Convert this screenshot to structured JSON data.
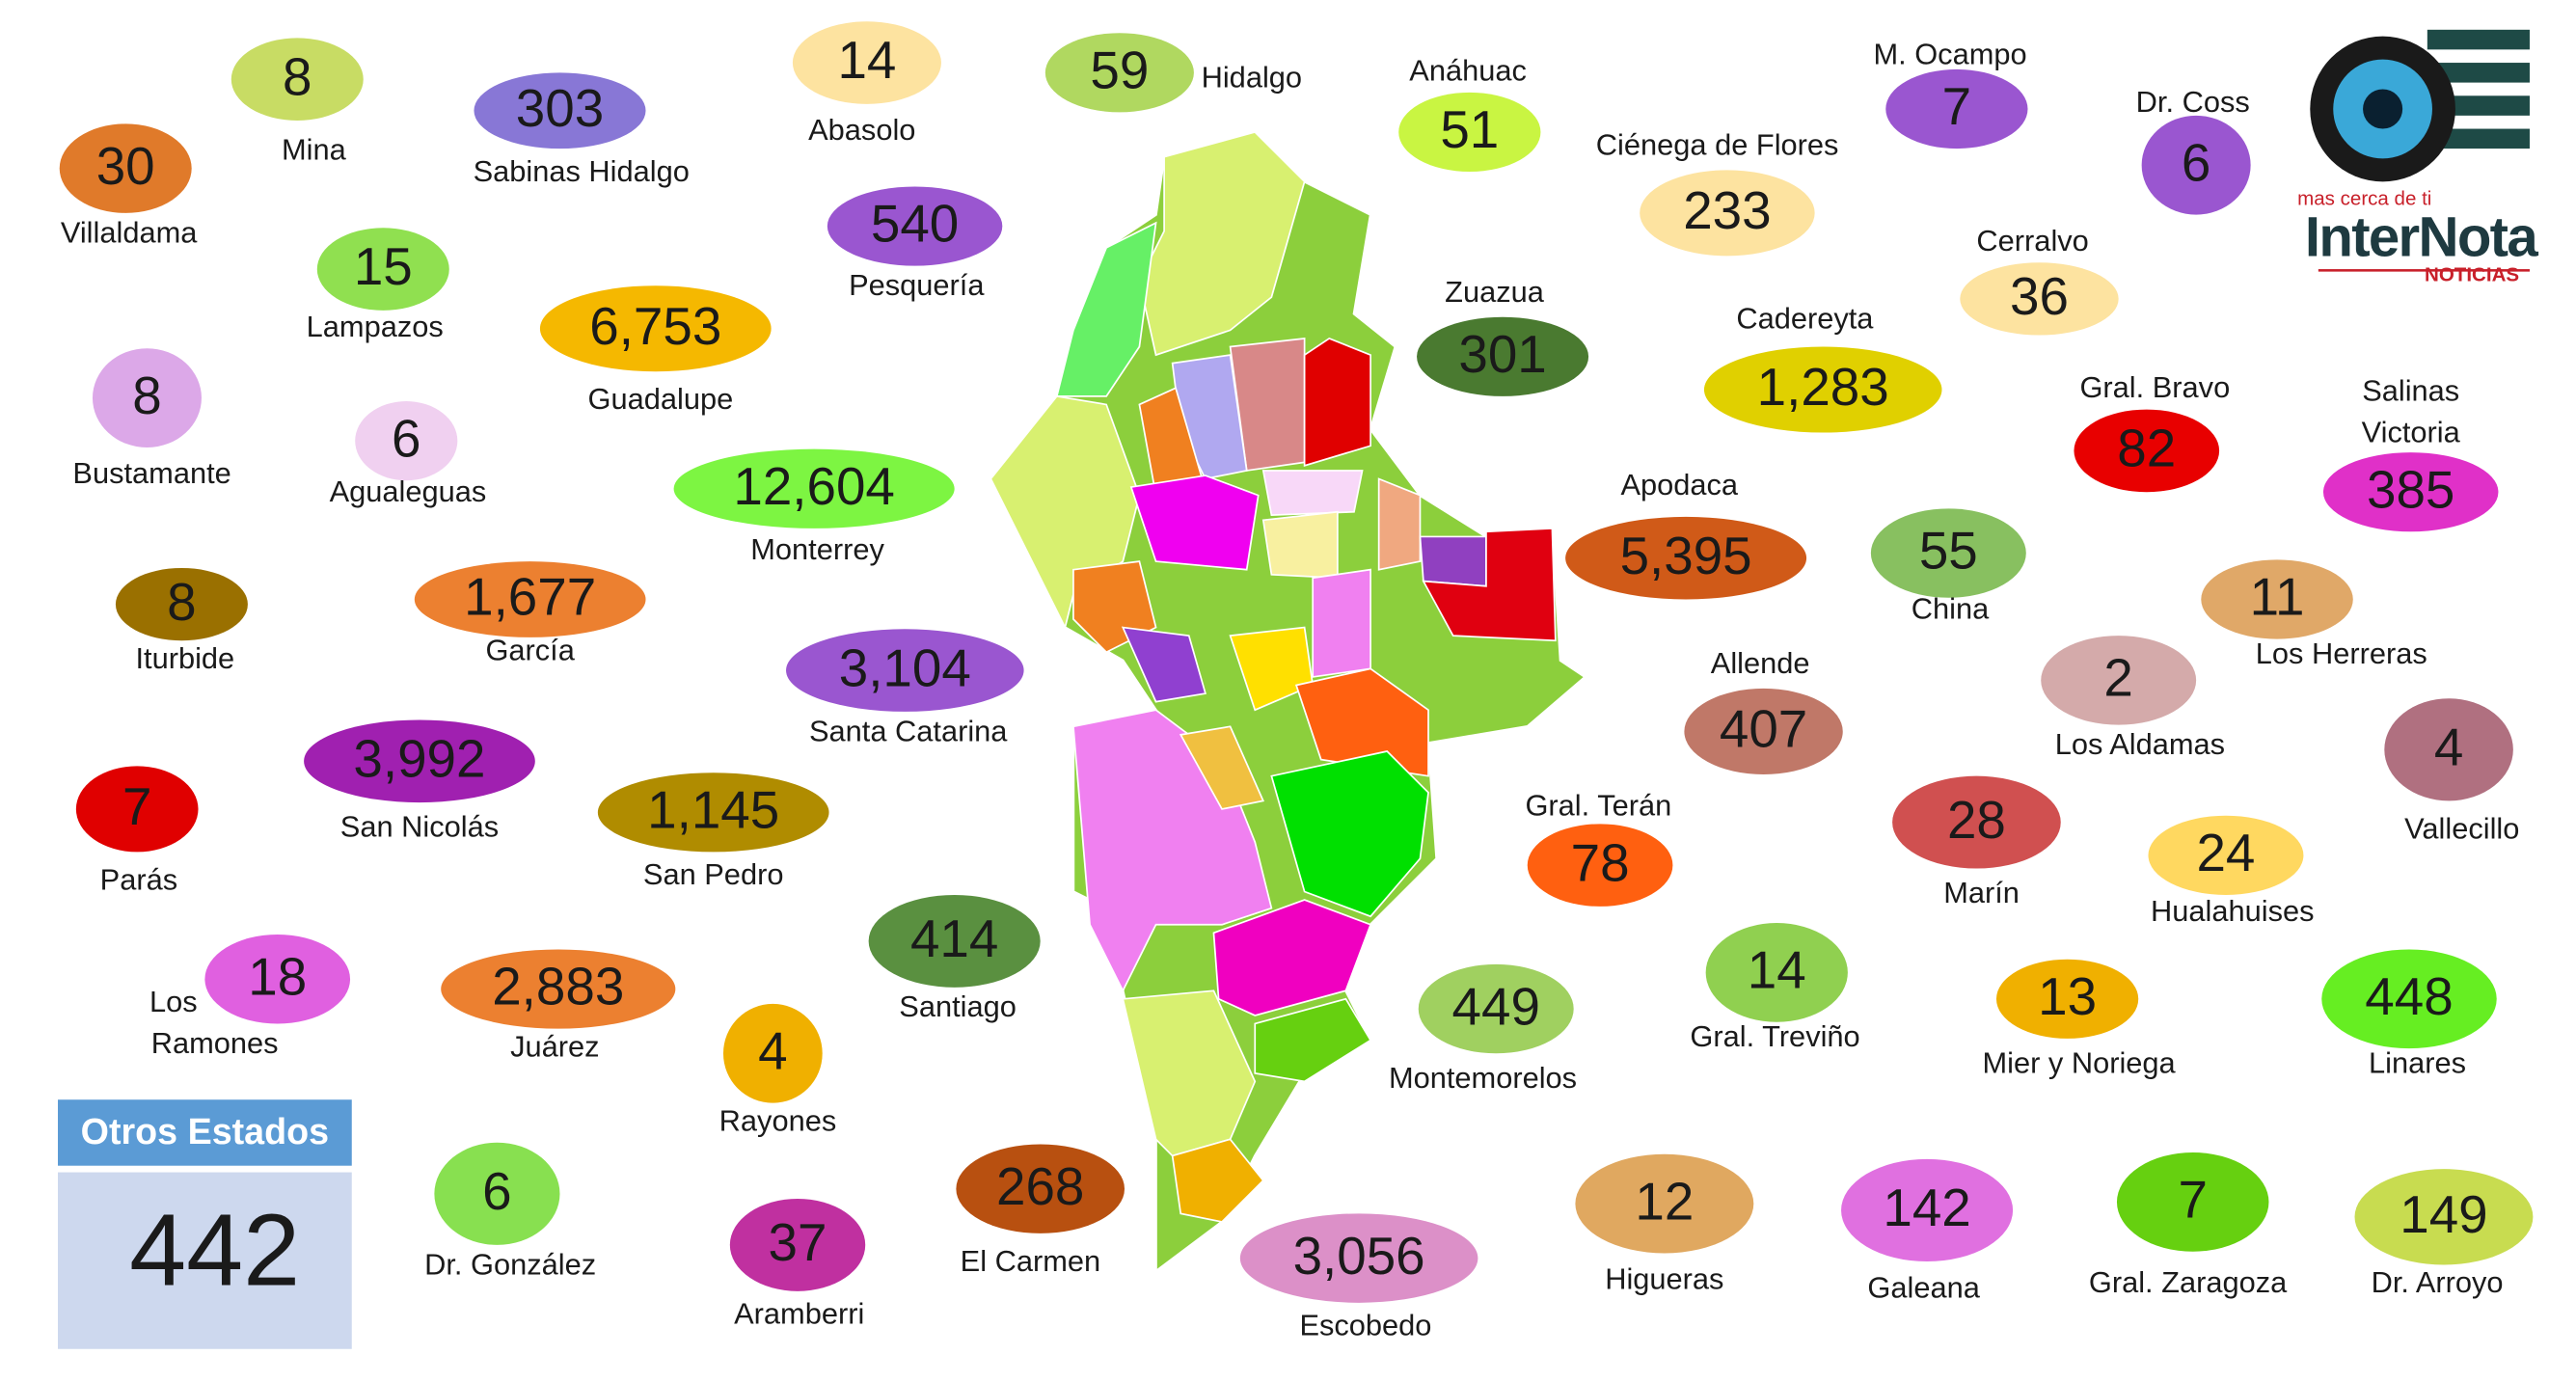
{
  "municipalities": [
    {
      "name": [
        "Mina"
      ],
      "count": "8",
      "color": "#c8dc64"
    },
    {
      "name": [
        "Sabinas Hidalgo"
      ],
      "count": "303",
      "color": "#8877d6"
    },
    {
      "name": [
        "Abasolo"
      ],
      "count": "14",
      "color": "#fde3a0"
    },
    {
      "name": [
        "Hidalgo"
      ],
      "count": "59",
      "color": "#b0d860"
    },
    {
      "name": [
        "Anáhuac"
      ],
      "count": "51",
      "color": "#c9f542"
    },
    {
      "name": [
        "M. Ocampo"
      ],
      "count": "7",
      "color": "#9a56d0"
    },
    {
      "name": [
        "Dr. Coss"
      ],
      "count": "6",
      "color": "#9a56d0"
    },
    {
      "name": [
        "Villaldama"
      ],
      "count": "30",
      "color": "#e07a2a"
    },
    {
      "name": [
        "Ciénega de Flores"
      ],
      "count": "233",
      "color": "#fde3a0"
    },
    {
      "name": [
        "Pesquería"
      ],
      "count": "540",
      "color": "#9a56d0"
    },
    {
      "name": [
        "Lampazos"
      ],
      "count": "15",
      "color": "#90e050"
    },
    {
      "name": [
        "Cerralvo"
      ],
      "count": "36",
      "color": "#fde3a0"
    },
    {
      "name": [
        "Zuazua"
      ],
      "count": "301",
      "color": "#4a7a30"
    },
    {
      "name": [
        "Guadalupe"
      ],
      "count": "6,753",
      "color": "#f5b800"
    },
    {
      "name": [
        "Cadereyta"
      ],
      "count": "1,283",
      "color": "#e0d000"
    },
    {
      "name": [
        "Gral. Bravo"
      ],
      "count": "82",
      "color": "#e80000"
    },
    {
      "name": [
        "Salinas",
        "Victoria"
      ],
      "count": "385",
      "color": "#e030c8"
    },
    {
      "name": [
        "Bustamante"
      ],
      "count": "8",
      "color": "#dca8e8"
    },
    {
      "name": [
        "Agualeguas"
      ],
      "count": "6",
      "color": "#f0d0f0"
    },
    {
      "name": [
        "Monterrey"
      ],
      "count": "12,604",
      "color": "#7df542"
    },
    {
      "name": [
        "Apodaca"
      ],
      "count": "5,395",
      "color": "#d05a18"
    },
    {
      "name": [
        "China"
      ],
      "count": "55",
      "color": "#88c060"
    },
    {
      "name": [
        "Iturbide"
      ],
      "count": "8",
      "color": "#9a7000"
    },
    {
      "name": [
        "García"
      ],
      "count": "1,677",
      "color": "#ec8030"
    },
    {
      "name": [
        "Los Herreras"
      ],
      "count": "11",
      "color": "#e0a868"
    },
    {
      "name": [
        "Santa Catarina"
      ],
      "count": "3,104",
      "color": "#9a56d0"
    },
    {
      "name": [
        "Allende"
      ],
      "count": "407",
      "color": "#c07868"
    },
    {
      "name": [
        "Los Aldamas"
      ],
      "count": "2",
      "color": "#d4aaaa"
    },
    {
      "name": [
        "Vallecillo"
      ],
      "count": "4",
      "color": "#b07080"
    },
    {
      "name": [
        "San Nicolás"
      ],
      "count": "3,992",
      "color": "#a020b0"
    },
    {
      "name": [
        "Parás"
      ],
      "count": "7",
      "color": "#e00000"
    },
    {
      "name": [
        "San Pedro"
      ],
      "count": "1,145",
      "color": "#b08c00"
    },
    {
      "name": [
        "Marín"
      ],
      "count": "28",
      "color": "#d05050"
    },
    {
      "name": [
        "Gral. Terán"
      ],
      "count": "78",
      "color": "#ff6010"
    },
    {
      "name": [
        "Hualahuises"
      ],
      "count": "24",
      "color": "#ffd860"
    },
    {
      "name": [
        "Santiago"
      ],
      "count": "414",
      "color": "#5a9040"
    },
    {
      "name": [
        "Los",
        "Ramones"
      ],
      "count": "18",
      "color": "#e060e0"
    },
    {
      "name": [
        "Juárez"
      ],
      "count": "2,883",
      "color": "#ec8030"
    },
    {
      "name": [
        "Gral. Treviño"
      ],
      "count": "14",
      "color": "#90d050"
    },
    {
      "name": [
        "Rayones"
      ],
      "count": "4",
      "color": "#f0b000"
    },
    {
      "name": [
        "Montemorelos"
      ],
      "count": "449",
      "color": "#a0d060"
    },
    {
      "name": [
        "Mier y Noriega"
      ],
      "count": "13",
      "color": "#f0b000"
    },
    {
      "name": [
        "Linares"
      ],
      "count": "448",
      "color": "#66ee22"
    },
    {
      "name": [
        "Dr. González"
      ],
      "count": "6",
      "color": "#88e050"
    },
    {
      "name": [
        "Aramberri"
      ],
      "count": "37",
      "color": "#c030a0"
    },
    {
      "name": [
        "El Carmen"
      ],
      "count": "268",
      "color": "#b85010"
    },
    {
      "name": [
        "Escobedo"
      ],
      "count": "3,056",
      "color": "#dc90c8"
    },
    {
      "name": [
        "Higueras"
      ],
      "count": "12",
      "color": "#e0a860"
    },
    {
      "name": [
        "Galeana"
      ],
      "count": "142",
      "color": "#e070e0"
    },
    {
      "name": [
        "Gral. Zaragoza"
      ],
      "count": "7",
      "color": "#66d010"
    },
    {
      "name": [
        "Dr. Arroyo"
      ],
      "count": "149",
      "color": "#c8dc50"
    }
  ],
  "other_states": {
    "title": "Otros Estados",
    "count": "442"
  },
  "logo": {
    "tagline": "mas cerca de ti",
    "name": "InterNota",
    "subname": "NOTICIAS"
  }
}
